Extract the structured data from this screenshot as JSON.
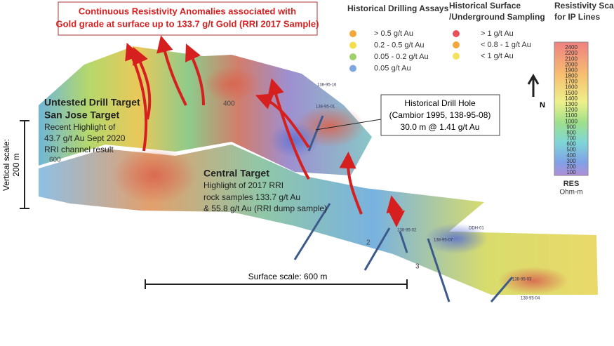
{
  "title": [
    "Continuous Resistivity Anomalies associated with",
    "Gold grade at surface up to 133.7 g/t Gold (RRI 2017 Sample)"
  ],
  "legend_drilling": {
    "title": "Historical Drilling Assays",
    "items": [
      {
        "label": "> 0.5 g/t Au",
        "color": "#f4a83a"
      },
      {
        "label": "0.2 - 0.5 g/t Au",
        "color": "#f3df4c"
      },
      {
        "label": "0.05 - 0.2 g/t Au",
        "color": "#9fd06a"
      },
      {
        "label": "0.05 g/t Au",
        "color": "#7fa8e2"
      }
    ]
  },
  "legend_surface": {
    "title": [
      "Historical Surface",
      "/Underground Sampling"
    ],
    "items": [
      {
        "label": "> 1 g/t Au",
        "color": "#e8505b"
      },
      {
        "label": "< 0.8 - 1 g/t Au",
        "color": "#f4a83a"
      },
      {
        "label": "< 1 g/t Au",
        "color": "#f3e35a"
      }
    ]
  },
  "resistivity_scale": {
    "title": [
      "Resistivity Scale",
      "for IP Lines"
    ],
    "ticks": [
      2400,
      2200,
      2100,
      2000,
      1900,
      1800,
      1700,
      1600,
      1500,
      1400,
      1300,
      1200,
      1100,
      1000,
      900,
      800,
      700,
      600,
      500,
      400,
      300,
      200,
      100
    ],
    "unit_title": "RES",
    "unit": "Ohm-m"
  },
  "north": "N",
  "san_jose": {
    "heading": [
      "Untested Drill Target",
      "San Jose Target"
    ],
    "text": [
      "Recent Highlight of",
      "43.7 g/t Au  Sept 2020",
      "RRI channel result"
    ]
  },
  "central": {
    "heading": "Central Target",
    "text": [
      "Highlight of 2017 RRI",
      "rock samples 133.7 g/t Au",
      "& 55.8 g/t Au (RRI dump sample)"
    ]
  },
  "callout": [
    "Historical Drill Hole",
    "(Cambior 1995, 138-95-08)",
    "30.0 m @ 1.41 g/t Au"
  ],
  "vertical_scale": [
    "Vertical scale:",
    "200 m"
  ],
  "surface_scale": "Surface scale:  600 m",
  "drill_labels": [
    "138-95-16",
    "138-95-01",
    "138-95-02",
    "138-95-07",
    "DDH-01",
    "138-95-03",
    "138-95-04"
  ],
  "contour_labels": [
    "400",
    "600",
    "2",
    "3"
  ]
}
